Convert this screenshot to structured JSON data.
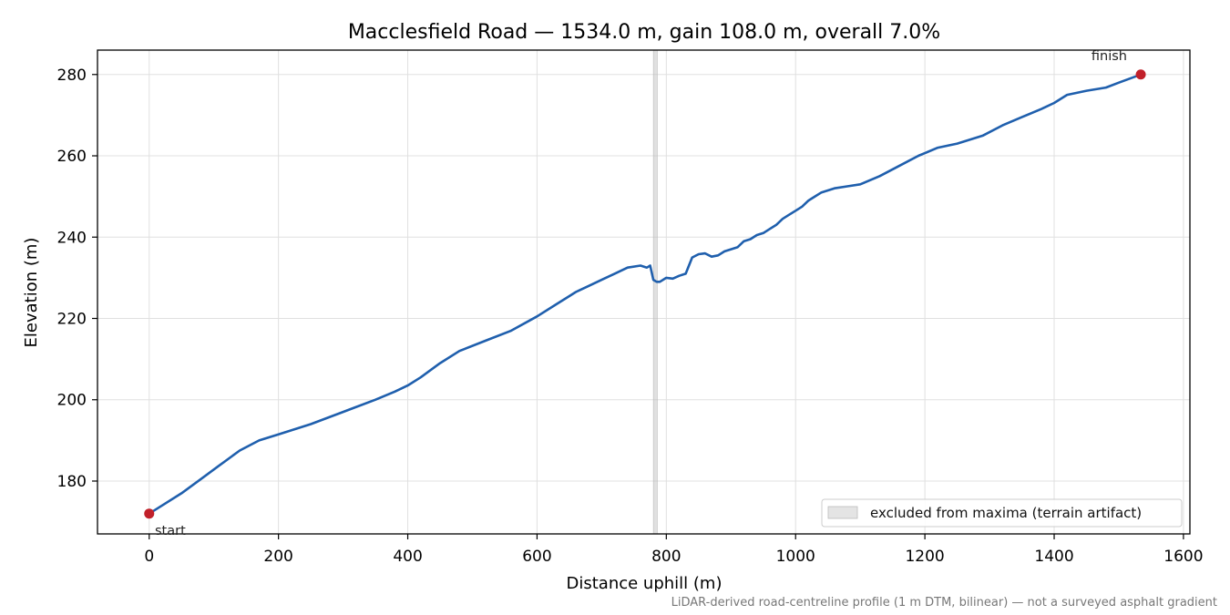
{
  "chart_data": {
    "type": "line",
    "title": "Macclesfield Road — 1534.0 m, gain 108.0 m, overall 7.0%",
    "xlabel": "Distance uphill (m)",
    "ylabel": "Elevation (m)",
    "xlim": [
      -80,
      1610
    ],
    "ylim": [
      167,
      286
    ],
    "x_ticks": [
      0,
      200,
      400,
      600,
      800,
      1000,
      1200,
      1400,
      1600
    ],
    "y_ticks": [
      180,
      200,
      220,
      240,
      260,
      280
    ],
    "x_tick_labels": [
      "0",
      "200",
      "400",
      "600",
      "800",
      "1000",
      "1200",
      "1400",
      "1600"
    ],
    "y_tick_labels": [
      "180",
      "200",
      "220",
      "240",
      "260",
      "280"
    ],
    "grid": true,
    "legend_position": "lower-right",
    "line_color": "#1f5fad",
    "marker_color": "#c1202a",
    "band_color": "#bbbbbb",
    "excluded_band": {
      "label": "excluded from maxima (terrain artifact)",
      "x_range": [
        780,
        786
      ]
    },
    "markers": [
      {
        "label": "start",
        "x": 0,
        "y": 172
      },
      {
        "label": "finish",
        "x": 1534,
        "y": 280
      }
    ],
    "series": [
      {
        "x": [
          0,
          20,
          50,
          80,
          110,
          140,
          170,
          200,
          250,
          300,
          350,
          380,
          400,
          420,
          450,
          480,
          520,
          560,
          600,
          630,
          650,
          660,
          680,
          700,
          720,
          740,
          760,
          770,
          775,
          780,
          785,
          790,
          800,
          810,
          820,
          830,
          840,
          850,
          860,
          870,
          880,
          890,
          900,
          910,
          920,
          930,
          940,
          950,
          960,
          970,
          980,
          990,
          1000,
          1010,
          1020,
          1030,
          1040,
          1060,
          1080,
          1100,
          1130,
          1160,
          1190,
          1220,
          1250,
          1290,
          1320,
          1350,
          1380,
          1400,
          1420,
          1450,
          1480,
          1500,
          1534
        ],
        "y": [
          172,
          174,
          177,
          180.5,
          184,
          187.5,
          190,
          191.5,
          194,
          197,
          200,
          202,
          203.5,
          205.5,
          209,
          212,
          214.5,
          217,
          220.5,
          223.5,
          225.5,
          226.5,
          228,
          229.5,
          231,
          232.5,
          233,
          232.5,
          233,
          229.5,
          229,
          229,
          230,
          229.8,
          230.5,
          231,
          235,
          235.8,
          236,
          235.2,
          235.5,
          236.5,
          237,
          237.5,
          239,
          239.5,
          240.5,
          241,
          242,
          243,
          244.5,
          245.5,
          246.5,
          247.5,
          249,
          250,
          251,
          252,
          252.5,
          253,
          255,
          257.5,
          260,
          262,
          263,
          265,
          267.5,
          269.5,
          271.5,
          273,
          275,
          276,
          276.8,
          278,
          280
        ]
      }
    ]
  },
  "footnote": "LiDAR-derived road-centreline profile (1 m DTM, bilinear) — not a surveyed asphalt gradient"
}
